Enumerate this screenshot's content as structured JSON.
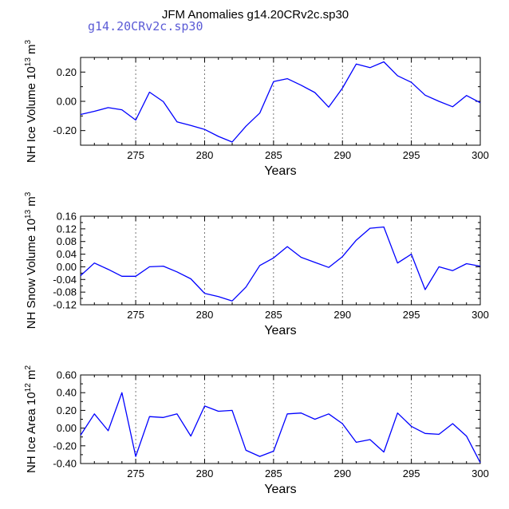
{
  "header": {
    "title": "JFM Anomalies g14.20CRv2c.sp30",
    "case_label": "g14.20CRv2c.sp30",
    "case_color": "#5b5bd6"
  },
  "line_color": "#0000ff",
  "chart_data": [
    {
      "type": "line",
      "name": "ice-volume",
      "title": "",
      "xlabel": "Years",
      "ylabel": "NH Ice Volume 10",
      "ylabel_exp": "13",
      "ylabel_unit": "m",
      "ylabel_unit_exp": "3",
      "xlim": [
        271,
        300
      ],
      "ylim": [
        -0.3,
        0.3
      ],
      "xticks": [
        275,
        280,
        285,
        290,
        295,
        300
      ],
      "yticks": [
        -0.2,
        0.0,
        0.2
      ],
      "ytick_labels": [
        "-0.20",
        "0.00",
        "0.20"
      ],
      "vgrid_dashed": [
        275,
        280,
        285,
        290,
        295
      ],
      "x": [
        271,
        272,
        273,
        274,
        275,
        276,
        277,
        278,
        279,
        280,
        281,
        282,
        283,
        284,
        285,
        286,
        287,
        288,
        289,
        290,
        291,
        292,
        293,
        294,
        295,
        296,
        297,
        298,
        299,
        300
      ],
      "series": [
        {
          "name": "JFM Ice Volume anomaly",
          "values": [
            -0.09,
            -0.068,
            -0.043,
            -0.058,
            -0.128,
            0.063,
            -0.002,
            -0.14,
            -0.165,
            -0.192,
            -0.24,
            -0.278,
            -0.17,
            -0.08,
            0.135,
            0.155,
            0.11,
            0.06,
            -0.04,
            0.09,
            0.255,
            0.23,
            0.27,
            0.175,
            0.13,
            0.042,
            0.0,
            -0.037,
            0.04,
            -0.01
          ]
        }
      ]
    },
    {
      "type": "line",
      "name": "snow-volume",
      "title": "",
      "xlabel": "Years",
      "ylabel": "NH Snow Volume 10",
      "ylabel_exp": "13",
      "ylabel_unit": "m",
      "ylabel_unit_exp": "3",
      "xlim": [
        271,
        300
      ],
      "ylim": [
        -0.12,
        0.16
      ],
      "xticks": [
        275,
        280,
        285,
        290,
        295,
        300
      ],
      "yticks": [
        -0.12,
        -0.08,
        -0.04,
        0.0,
        0.04,
        0.08,
        0.12,
        0.16
      ],
      "ytick_labels": [
        "-0.12",
        "-0.08",
        "-0.04",
        "0.00",
        "0.04",
        "0.08",
        "0.12",
        "0.16"
      ],
      "vgrid_dashed": [
        275,
        280,
        285,
        290,
        295
      ],
      "x": [
        271,
        272,
        273,
        274,
        275,
        276,
        277,
        278,
        279,
        280,
        281,
        282,
        283,
        284,
        285,
        286,
        287,
        288,
        289,
        290,
        291,
        292,
        293,
        294,
        295,
        296,
        297,
        298,
        299,
        300
      ],
      "series": [
        {
          "name": "JFM Snow Volume anomaly",
          "values": [
            -0.028,
            0.012,
            -0.008,
            -0.03,
            -0.03,
            0.0,
            0.002,
            -0.016,
            -0.038,
            -0.084,
            -0.094,
            -0.108,
            -0.064,
            0.004,
            0.028,
            0.064,
            0.03,
            0.014,
            -0.002,
            0.032,
            0.084,
            0.122,
            0.126,
            0.012,
            0.04,
            -0.072,
            0.0,
            -0.012,
            0.01,
            0.002
          ]
        }
      ]
    },
    {
      "type": "line",
      "name": "ice-area",
      "title": "",
      "xlabel": "Years",
      "ylabel": "NH Ice Area 10",
      "ylabel_exp": "12",
      "ylabel_unit": "m",
      "ylabel_unit_exp": "2",
      "xlim": [
        271,
        300
      ],
      "ylim": [
        -0.4,
        0.6
      ],
      "xticks": [
        275,
        280,
        285,
        290,
        295,
        300
      ],
      "yticks": [
        -0.4,
        -0.2,
        0.0,
        0.2,
        0.4,
        0.6
      ],
      "ytick_labels": [
        "-0.40",
        "-0.20",
        "0.00",
        "0.20",
        "0.40",
        "0.60"
      ],
      "vgrid_dashed": [
        275,
        280,
        285,
        290,
        295
      ],
      "x": [
        271,
        272,
        273,
        274,
        275,
        276,
        277,
        278,
        279,
        280,
        281,
        282,
        283,
        284,
        285,
        286,
        287,
        288,
        289,
        290,
        291,
        292,
        293,
        294,
        295,
        296,
        297,
        298,
        299,
        300
      ],
      "series": [
        {
          "name": "JFM Ice Area anomaly",
          "values": [
            -0.08,
            0.16,
            -0.03,
            0.4,
            -0.32,
            0.13,
            0.12,
            0.16,
            -0.09,
            0.25,
            0.19,
            0.2,
            -0.25,
            -0.32,
            -0.26,
            0.16,
            0.17,
            0.1,
            0.16,
            0.05,
            -0.16,
            -0.13,
            -0.27,
            0.17,
            0.02,
            -0.06,
            -0.07,
            0.05,
            -0.09,
            -0.39
          ]
        }
      ]
    }
  ]
}
